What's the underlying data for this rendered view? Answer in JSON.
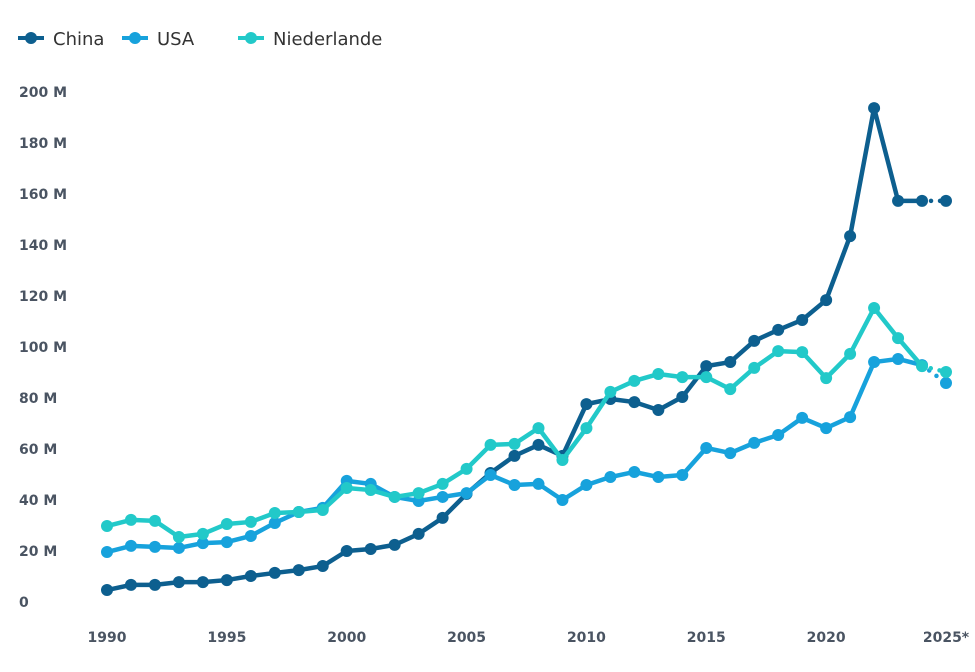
{
  "chart_data": {
    "type": "line",
    "title": "",
    "xlabel": "",
    "ylabel": "",
    "ylim": [
      0,
      200
    ],
    "y_ticks": [
      0,
      20,
      40,
      60,
      80,
      100,
      120,
      140,
      160,
      180,
      200
    ],
    "y_tick_labels": [
      "0",
      "20 M",
      "40 M",
      "60 M",
      "80 M",
      "100 M",
      "120 M",
      "140 M",
      "160 M",
      "180 M",
      "200 M"
    ],
    "x_ticks": [
      1990,
      1995,
      2000,
      2005,
      2010,
      2015,
      2020,
      2025
    ],
    "x_tick_labels": [
      "1990",
      "1995",
      "2000",
      "2005",
      "2010",
      "2015",
      "2020",
      "2025*"
    ],
    "xlim": [
      1990,
      2025
    ],
    "grid": false,
    "legend_position": "top-left",
    "projection_note": "last segment (2024–2025) drawn dotted",
    "x": [
      1990,
      1991,
      1992,
      1993,
      1994,
      1995,
      1996,
      1997,
      1998,
      1999,
      2000,
      2001,
      2002,
      2003,
      2004,
      2005,
      2006,
      2007,
      2008,
      2009,
      2010,
      2011,
      2012,
      2013,
      2014,
      2015,
      2016,
      2017,
      2018,
      2019,
      2020,
      2021,
      2022,
      2023,
      2024,
      2025
    ],
    "series": [
      {
        "name": "China",
        "color": "#0d5f8f",
        "values": [
          4.7,
          6.7,
          6.7,
          7.8,
          7.8,
          8.6,
          10.2,
          11.4,
          12.5,
          14.1,
          20.0,
          20.8,
          22.4,
          26.7,
          33.0,
          42.4,
          50.6,
          57.3,
          61.6,
          57.3,
          77.6,
          79.6,
          78.4,
          75.3,
          80.4,
          92.5,
          94.1,
          102.4,
          106.7,
          110.6,
          118.4,
          143.5,
          193.7,
          157.3,
          157.3,
          157.3
        ]
      },
      {
        "name": "USA",
        "color": "#17a2dc",
        "values": [
          19.6,
          22.0,
          21.6,
          21.2,
          23.1,
          23.5,
          25.9,
          31.0,
          35.3,
          36.9,
          47.5,
          46.3,
          41.2,
          39.6,
          41.2,
          42.7,
          49.8,
          45.9,
          46.3,
          40.0,
          45.9,
          49.0,
          51.0,
          49.0,
          49.8,
          60.4,
          58.4,
          62.4,
          65.5,
          72.2,
          68.2,
          72.5,
          94.1,
          95.3,
          92.9,
          85.9
        ]
      },
      {
        "name": "Niederlande",
        "color": "#22c9c9",
        "values": [
          29.8,
          32.2,
          31.8,
          25.5,
          26.7,
          30.6,
          31.4,
          34.9,
          35.3,
          36.1,
          44.7,
          43.9,
          41.2,
          42.7,
          46.3,
          52.2,
          61.6,
          62.0,
          68.2,
          55.7,
          68.2,
          82.4,
          86.7,
          89.4,
          88.2,
          88.2,
          83.5,
          91.8,
          98.4,
          98.0,
          87.8,
          97.3,
          115.3,
          103.5,
          92.5,
          90.2
        ]
      }
    ]
  }
}
